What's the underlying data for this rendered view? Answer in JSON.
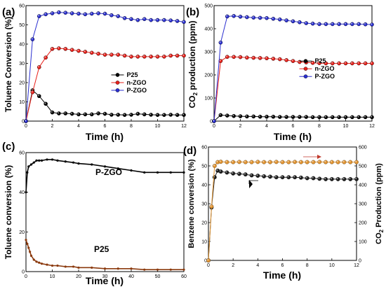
{
  "chart_data": [
    {
      "type": "line",
      "panel": "(a)",
      "xlabel": "Time (h)",
      "ylabel": "Toluene Conversion (%)",
      "xlim": [
        0,
        12
      ],
      "ylim": [
        0,
        60
      ],
      "xticks": [
        0,
        2,
        4,
        6,
        8,
        10,
        12
      ],
      "yticks": [
        0,
        10,
        20,
        30,
        40,
        50,
        60
      ],
      "legend_position": "center-right",
      "series": [
        {
          "name": "P25",
          "color": "#000000",
          "x": [
            0,
            0.5,
            1,
            1.5,
            2,
            2.5,
            3,
            3.5,
            4,
            4.5,
            5,
            5.5,
            6,
            6.5,
            7,
            7.5,
            8,
            8.5,
            9,
            9.5,
            10,
            10.5,
            11,
            11.5,
            12
          ],
          "y": [
            0,
            16,
            13,
            9,
            4.5,
            4,
            4,
            3.8,
            3.5,
            3.5,
            3.5,
            4,
            3.8,
            3.3,
            3.3,
            3.2,
            3.3,
            3.8,
            3.5,
            3.3,
            3.2,
            3.2,
            3.3,
            3.2,
            3.2
          ]
        },
        {
          "name": "n-ZGO",
          "color": "#e8201a",
          "x": [
            0,
            0.5,
            1,
            1.5,
            2,
            2.5,
            3,
            3.5,
            4,
            4.5,
            5,
            5.5,
            6,
            6.5,
            7,
            7.5,
            8,
            8.5,
            9,
            9.5,
            10,
            10.5,
            11,
            11.5,
            12
          ],
          "y": [
            0,
            15,
            28,
            33,
            37.5,
            37.8,
            37.5,
            37,
            36.5,
            36,
            35.5,
            35,
            34.5,
            34.5,
            34.5,
            34,
            33.5,
            33.5,
            33.5,
            33.5,
            33.5,
            33.5,
            34,
            34,
            34
          ]
        },
        {
          "name": "P-ZGO",
          "color": "#2a2fd0",
          "x": [
            0,
            0.5,
            1,
            1.5,
            2,
            2.5,
            3,
            3.5,
            4,
            4.5,
            5,
            5.5,
            6,
            6.5,
            7,
            7.5,
            8,
            8.5,
            9,
            9.5,
            10,
            10.5,
            11,
            11.5,
            12
          ],
          "y": [
            0,
            42.5,
            54.5,
            55.5,
            56,
            56.5,
            56.3,
            56,
            55.8,
            55.5,
            55.8,
            56,
            55.8,
            55,
            54.5,
            53.5,
            53,
            52.5,
            53,
            52.5,
            52.5,
            52.5,
            52.3,
            52,
            51.5
          ]
        }
      ]
    },
    {
      "type": "line",
      "panel": "(b)",
      "xlabel": "Time (h)",
      "ylabel": "CO2 production (ppm)",
      "xlim": [
        0,
        12
      ],
      "ylim": [
        0,
        500
      ],
      "xticks": [
        0,
        2,
        4,
        6,
        8,
        10,
        12
      ],
      "yticks": [
        0,
        100,
        200,
        300,
        400,
        500
      ],
      "legend_position": "center-right",
      "series": [
        {
          "name": "P25",
          "color": "#000000",
          "x": [
            0,
            0.5,
            1,
            1.5,
            2,
            2.5,
            3,
            3.5,
            4,
            4.5,
            5,
            5.5,
            6,
            6.5,
            7,
            7.5,
            8,
            8.5,
            9,
            9.5,
            10,
            10.5,
            11,
            11.5,
            12
          ],
          "y": [
            0,
            26,
            24,
            22,
            21,
            20,
            20,
            19,
            19,
            19,
            18,
            18,
            18,
            18,
            18,
            17,
            17,
            17,
            17,
            17,
            17,
            17,
            17,
            17,
            17
          ]
        },
        {
          "name": "n-ZGO",
          "color": "#e8201a",
          "x": [
            0,
            0.5,
            1,
            1.5,
            2,
            2.5,
            3,
            3.5,
            4,
            4.5,
            5,
            5.5,
            6,
            6.5,
            7,
            7.5,
            8,
            8.5,
            9,
            9.5,
            10,
            10.5,
            11,
            11.5,
            12
          ],
          "y": [
            0,
            260,
            278,
            278,
            277,
            275,
            274,
            273,
            272,
            270,
            268,
            264,
            260,
            256,
            254,
            252,
            251,
            250,
            250,
            250,
            250,
            250,
            250,
            250,
            250
          ]
        },
        {
          "name": "P-ZGO",
          "color": "#2a2fd0",
          "x": [
            0,
            0.5,
            1,
            1.5,
            2,
            2.5,
            3,
            3.5,
            4,
            4.5,
            5,
            5.5,
            6,
            6.5,
            7,
            7.5,
            8,
            8.5,
            9,
            9.5,
            10,
            10.5,
            11,
            11.5,
            12
          ],
          "y": [
            0,
            340,
            453,
            455,
            452,
            450,
            448,
            447,
            446,
            443,
            440,
            436,
            432,
            428,
            424,
            422,
            420,
            420,
            420,
            420,
            420,
            420,
            420,
            419,
            418
          ]
        }
      ]
    },
    {
      "type": "line",
      "panel": "(c)",
      "xlabel": "Time (h)",
      "ylabel": "Toluene conversion (%)",
      "xlim": [
        0,
        60
      ],
      "ylim": [
        0,
        60
      ],
      "xticks": [
        0,
        10,
        20,
        30,
        40,
        50,
        60
      ],
      "yticks": [
        0,
        20,
        40,
        60
      ],
      "annotations": [
        "P-ZGO",
        "P25"
      ],
      "series": [
        {
          "name": "P-ZGO",
          "color": "#000000",
          "x": [
            0,
            0.5,
            1,
            2,
            3,
            4,
            5,
            6,
            8,
            10,
            12,
            15,
            18,
            20,
            25,
            30,
            35,
            40,
            45,
            50,
            55,
            60
          ],
          "y": [
            40,
            50,
            53,
            54,
            55,
            56,
            56,
            56,
            56.5,
            56.5,
            56,
            55.5,
            55,
            54.5,
            54,
            53,
            52,
            51,
            50,
            50,
            50,
            50
          ]
        },
        {
          "name": "P25",
          "color": "#8b3a0e",
          "x": [
            0,
            0.5,
            1,
            1.5,
            2,
            3,
            4,
            5,
            6,
            8,
            10,
            12,
            15,
            18,
            20,
            25,
            30,
            35,
            40,
            45,
            50,
            55,
            60
          ],
          "y": [
            16,
            14,
            12,
            10,
            8,
            6,
            5,
            4.5,
            4,
            3.5,
            3,
            3,
            2.5,
            2.5,
            2,
            2,
            1.5,
            1.5,
            1.5,
            1,
            1,
            1,
            1
          ]
        }
      ]
    },
    {
      "type": "line",
      "panel": "(d)",
      "xlabel": "Time (h)",
      "ylabel": "Benzene conversion (%)",
      "ylabel_right": "CO2 Production (ppm)",
      "xlim": [
        0,
        12
      ],
      "ylim": [
        0,
        60
      ],
      "ylim_right": [
        0,
        600
      ],
      "xticks": [
        0,
        2,
        4,
        6,
        8,
        10,
        12
      ],
      "yticks": [
        0,
        10,
        20,
        30,
        40,
        50,
        60
      ],
      "yticks_right": [
        0,
        100,
        200,
        300,
        400,
        500,
        600
      ],
      "series": [
        {
          "name": "Benzene conversion",
          "axis": "left",
          "color": "#1a1a1a",
          "x": [
            0,
            0.25,
            0.5,
            0.75,
            1,
            1.5,
            2,
            2.5,
            3,
            3.5,
            4,
            4.5,
            5,
            5.5,
            6,
            6.5,
            7,
            7.5,
            8,
            8.5,
            9,
            9.5,
            10,
            10.5,
            11,
            11.5,
            12
          ],
          "y": [
            0,
            28,
            44,
            47.5,
            47,
            46.5,
            46,
            45.8,
            45.5,
            45,
            44.8,
            44.5,
            44.3,
            44,
            44,
            44,
            44,
            43.8,
            43.5,
            43.5,
            43.2,
            43,
            43,
            43,
            43,
            43,
            43
          ]
        },
        {
          "name": "CO2 Production",
          "axis": "right",
          "color": "#e0922e",
          "x": [
            0,
            0.25,
            0.5,
            0.75,
            1,
            1.5,
            2,
            2.5,
            3,
            3.5,
            4,
            4.5,
            5,
            5.5,
            6,
            6.5,
            7,
            7.5,
            8,
            8.5,
            9,
            9.5,
            10,
            10.5,
            11,
            11.5,
            12
          ],
          "y": [
            0,
            285,
            500,
            520,
            522,
            520,
            520,
            521,
            520,
            520,
            521,
            520,
            520,
            521,
            520,
            520,
            521,
            520,
            520,
            520,
            521,
            520,
            520,
            520,
            520,
            520,
            520
          ]
        }
      ]
    }
  ]
}
